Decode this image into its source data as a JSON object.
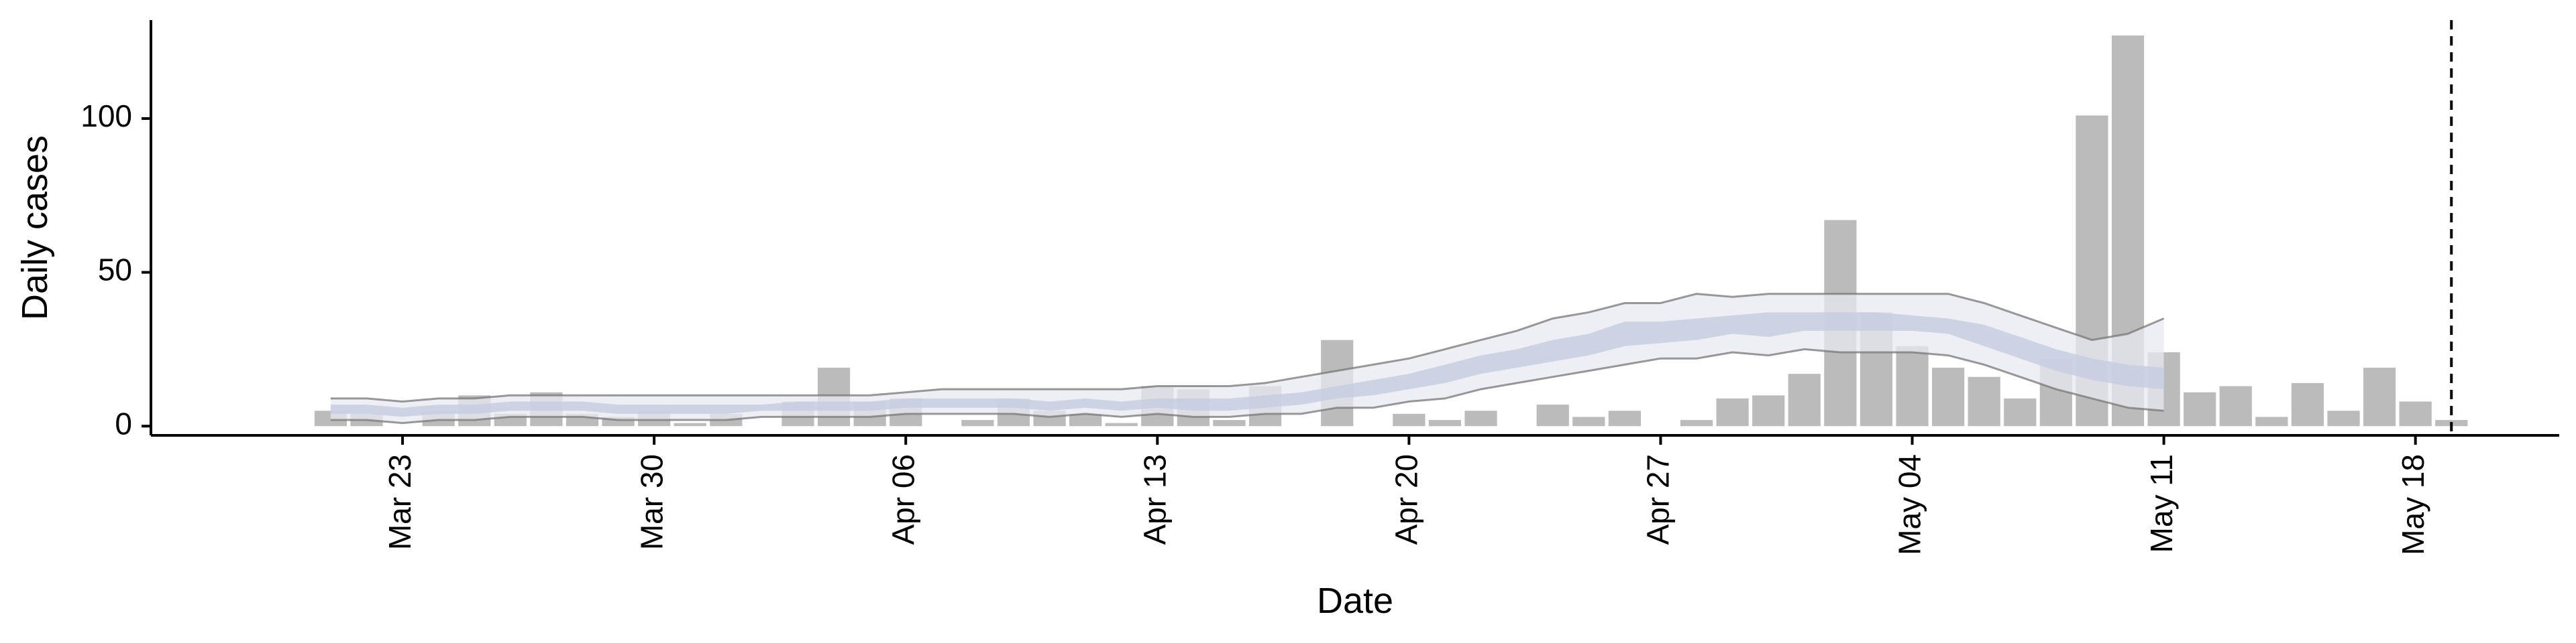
{
  "chart_data": {
    "type": "bar",
    "title": "",
    "xlabel": "Date",
    "ylabel": "Daily cases",
    "grid": false,
    "legend": "none",
    "x_start_date": "2020-03-21",
    "x_domain_dates": [
      "2020-03-16",
      "2020-05-22"
    ],
    "ylim": [
      -3,
      132
    ],
    "y_ticks": [
      0,
      50,
      100
    ],
    "x_ticks": [
      "Mar 23",
      "Mar 30",
      "Apr 06",
      "Apr 13",
      "Apr 20",
      "Apr 27",
      "May 04",
      "May 11",
      "May 18"
    ],
    "x_tick_dates": [
      "2020-03-23",
      "2020-03-30",
      "2020-04-06",
      "2020-04-13",
      "2020-04-20",
      "2020-04-27",
      "2020-05-04",
      "2020-05-11",
      "2020-05-18"
    ],
    "series": [
      {
        "type": "bar",
        "values": [
          5,
          4,
          0,
          5,
          10,
          4,
          11,
          4,
          3,
          5,
          1,
          4,
          0,
          8,
          19,
          8,
          9,
          0,
          2,
          9,
          5,
          4,
          1,
          13,
          12,
          2,
          13,
          0,
          28,
          0,
          4,
          2,
          5,
          0,
          7,
          3,
          5,
          0,
          2,
          9,
          10,
          17,
          67,
          37,
          26,
          19,
          16,
          9,
          22,
          101,
          127,
          24,
          11,
          13,
          3,
          14,
          5,
          19,
          8,
          2
        ]
      },
      {
        "type": "band",
        "start_date": "2020-03-21",
        "upper": [
          9,
          9,
          8,
          9,
          9,
          10,
          10,
          10,
          10,
          10,
          10,
          10,
          10,
          10,
          10,
          10,
          11,
          12,
          12,
          12,
          12,
          12,
          12,
          13,
          13,
          13,
          14,
          16,
          18,
          20,
          22,
          25,
          28,
          31,
          35,
          37,
          40,
          40,
          43,
          42,
          43,
          43,
          43,
          43,
          43,
          43,
          40,
          36,
          32,
          28,
          30,
          35
        ],
        "lower": [
          2,
          2,
          1,
          2,
          2,
          3,
          3,
          3,
          2,
          2,
          2,
          2,
          3,
          3,
          3,
          3,
          4,
          4,
          4,
          4,
          3,
          4,
          3,
          4,
          3,
          3,
          4,
          4,
          6,
          6,
          8,
          9,
          12,
          14,
          16,
          18,
          20,
          22,
          22,
          24,
          23,
          25,
          24,
          24,
          24,
          23,
          20,
          16,
          12,
          9,
          6,
          5
        ]
      },
      {
        "type": "band",
        "start_date": "2020-03-21",
        "upper": [
          7,
          7,
          6,
          7,
          7,
          8,
          8,
          8,
          7,
          7,
          7,
          7,
          7,
          8,
          8,
          8,
          9,
          9,
          9,
          9,
          8,
          9,
          8,
          9,
          9,
          9,
          10,
          11,
          13,
          15,
          17,
          20,
          23,
          25,
          28,
          30,
          34,
          34,
          35,
          36,
          37,
          37,
          37,
          37,
          36,
          35,
          33,
          29,
          25,
          22,
          20,
          19
        ],
        "lower": [
          4,
          4,
          3,
          4,
          4,
          5,
          5,
          5,
          4,
          4,
          4,
          4,
          5,
          5,
          5,
          5,
          6,
          6,
          6,
          6,
          5,
          6,
          5,
          6,
          5,
          5,
          6,
          7,
          9,
          10,
          12,
          14,
          17,
          19,
          21,
          23,
          26,
          27,
          28,
          30,
          29,
          31,
          31,
          31,
          31,
          30,
          26,
          22,
          18,
          15,
          13,
          12
        ]
      }
    ],
    "annotations": [
      {
        "type": "vline",
        "date": "2020-05-19",
        "style": "dashed"
      }
    ],
    "colors": {
      "bars": "#bbbbbb",
      "band_outer_fill": "#e8eaf2",
      "band_inner_fill": "#c6cce0",
      "band_edge": "#777777",
      "axis": "#000000",
      "vline": "#000000"
    }
  }
}
